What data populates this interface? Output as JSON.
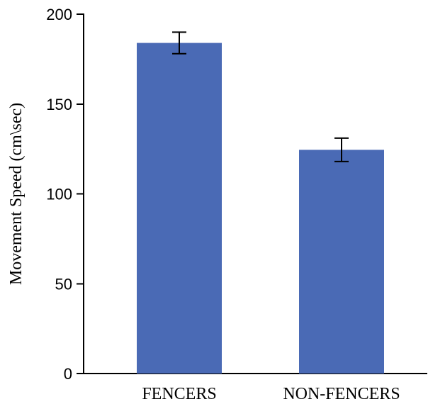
{
  "chart_data": {
    "type": "bar",
    "title": "",
    "categories": [
      "FENCERS",
      "NON-FENCERS"
    ],
    "values": [
      184,
      124.5
    ],
    "error": [
      6,
      6.5
    ],
    "xlabel": "",
    "ylabel": "Movement Speed (cm\\sec)",
    "ylim": [
      0,
      200
    ],
    "yticks": [
      0,
      50,
      100,
      150,
      200
    ],
    "ytick_labels": [
      "0",
      "50",
      "100",
      "150",
      "200"
    ],
    "bar_color": "#4a6ab5",
    "grid": false,
    "legend": "none"
  }
}
